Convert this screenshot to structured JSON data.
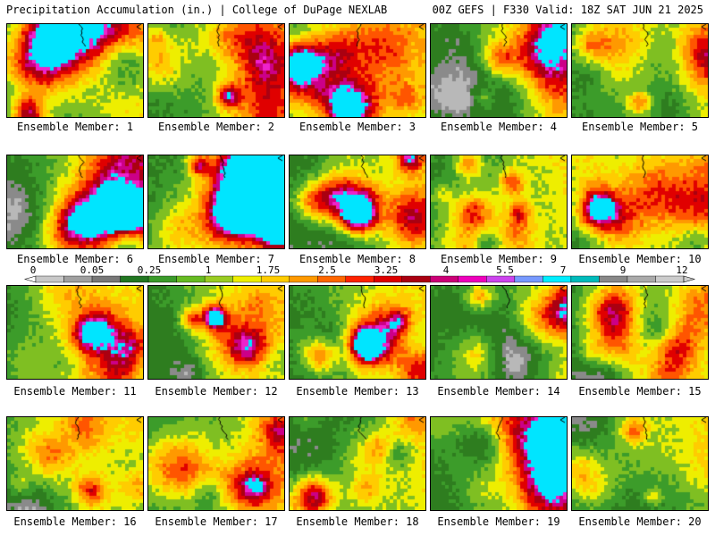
{
  "header": {
    "left": "Precipitation Accumulation (in.) | College of DuPage NEXLAB",
    "right": "00Z GEFS | F330 Valid: 18Z SAT JUN 21 2025"
  },
  "members": [
    "Ensemble Member: 1",
    "Ensemble Member: 2",
    "Ensemble Member: 3",
    "Ensemble Member: 4",
    "Ensemble Member: 5",
    "Ensemble Member: 6",
    "Ensemble Member: 7",
    "Ensemble Member: 8",
    "Ensemble Member: 9",
    "Ensemble Member: 10",
    "Ensemble Member: 11",
    "Ensemble Member: 12",
    "Ensemble Member: 13",
    "Ensemble Member: 14",
    "Ensemble Member: 15",
    "Ensemble Member: 16",
    "Ensemble Member: 17",
    "Ensemble Member: 18",
    "Ensemble Member: 19",
    "Ensemble Member: 20"
  ],
  "legend": {
    "ticks": [
      "0",
      "0.05",
      "0.25",
      "1",
      "1.75",
      "2.5",
      "3.25",
      "4",
      "5.5",
      "7",
      "9",
      "12"
    ],
    "colors": [
      "#c8c8c8",
      "#a0a0a0",
      "#787878",
      "#227722",
      "#3a9a2a",
      "#66bb22",
      "#99cc22",
      "#eeee00",
      "#ffcc00",
      "#ff9900",
      "#ff6600",
      "#ff2200",
      "#dd0000",
      "#aa0011",
      "#cc0077",
      "#ee00bb",
      "#cc44ee",
      "#7799ff",
      "#00eeff",
      "#00bbbb",
      "#888888",
      "#aaaaaa",
      "#cccccc"
    ]
  }
}
